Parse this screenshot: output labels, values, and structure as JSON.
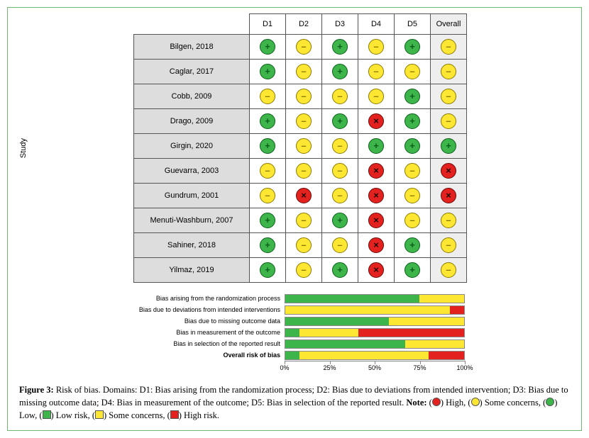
{
  "colors": {
    "low": {
      "fill": "#3db54a",
      "border": "#0b5f1b",
      "glyph": "+",
      "glyph_color": "#0b5f1b"
    },
    "some": {
      "fill": "#fde733",
      "border": "#8a7a00",
      "glyph": "–",
      "glyph_color": "#8a7a00"
    },
    "high": {
      "fill": "#e3211f",
      "border": "#6a0c0b",
      "glyph": "×",
      "glyph_color": "#1a0404"
    },
    "bar_low": "#3db54a",
    "bar_some": "#fde733",
    "bar_high": "#e3211f",
    "panel_border": "#6eb96e"
  },
  "table": {
    "axis_label": "Study",
    "columns": [
      "D1",
      "D2",
      "D3",
      "D4",
      "D5",
      "Overall"
    ],
    "rows": [
      {
        "study": "Bilgen, 2018",
        "ratings": [
          "low",
          "some",
          "low",
          "some",
          "low",
          "some"
        ]
      },
      {
        "study": "Caglar, 2017",
        "ratings": [
          "low",
          "some",
          "low",
          "some",
          "some",
          "some"
        ]
      },
      {
        "study": "Cobb, 2009",
        "ratings": [
          "some",
          "some",
          "some",
          "some",
          "low",
          "some"
        ]
      },
      {
        "study": "Drago, 2009",
        "ratings": [
          "low",
          "some",
          "low",
          "high",
          "low",
          "some"
        ]
      },
      {
        "study": "Girgin, 2020",
        "ratings": [
          "low",
          "some",
          "some",
          "low",
          "low",
          "low"
        ]
      },
      {
        "study": "Guevarra, 2003",
        "ratings": [
          "some",
          "some",
          "some",
          "high",
          "some",
          "high"
        ]
      },
      {
        "study": "Gundrum, 2001",
        "ratings": [
          "some",
          "high",
          "some",
          "high",
          "some",
          "high"
        ]
      },
      {
        "study": "Menuti-Washburn, 2007",
        "ratings": [
          "low",
          "some",
          "low",
          "high",
          "some",
          "some"
        ]
      },
      {
        "study": "Sahiner, 2018",
        "ratings": [
          "low",
          "some",
          "some",
          "high",
          "low",
          "some"
        ]
      },
      {
        "study": "Yilmaz, 2019",
        "ratings": [
          "low",
          "some",
          "low",
          "high",
          "low",
          "some"
        ]
      }
    ]
  },
  "barchart": {
    "x_ticks": [
      0,
      25,
      50,
      75,
      100
    ],
    "x_tick_labels": [
      "0%",
      "25%",
      "50%",
      "75%",
      "100%"
    ],
    "bars": [
      {
        "label": "Bias arising from the randomization process",
        "low": 75,
        "some": 25,
        "high": 0,
        "bold": false
      },
      {
        "label": "Bias due to deviations from intended interventions",
        "low": 0,
        "some": 92,
        "high": 8,
        "bold": false
      },
      {
        "label": "Bias due to missing outcome data",
        "low": 58,
        "some": 42,
        "high": 0,
        "bold": false
      },
      {
        "label": "Bias in measurement of the outcome",
        "low": 8,
        "some": 33,
        "high": 59,
        "bold": false
      },
      {
        "label": "Bias in selection of the reported result",
        "low": 67,
        "some": 33,
        "high": 0,
        "bold": false
      },
      {
        "label": "Overall risk of bias",
        "low": 8,
        "some": 72,
        "high": 20,
        "bold": true
      }
    ]
  },
  "caption": {
    "label": "Figure 3:",
    "body": " Risk of bias. Domains: D1: Bias arising from the randomization process; D2: Bias due to deviations from intended intervention; D3: Bias due to missing outcome data; D4: Bias in measurement of the outcome; D5: Bias in selection of the reported result. ",
    "note_label": "Note:",
    "legend": [
      {
        "type": "dot",
        "color": "#e3211f",
        "text": "High"
      },
      {
        "type": "dot",
        "color": "#fde733",
        "text": "Some concerns"
      },
      {
        "type": "dot",
        "color": "#3db54a",
        "text": "Low"
      },
      {
        "type": "sq",
        "color": "#3db54a",
        "text": "Low risk"
      },
      {
        "type": "sq",
        "color": "#fde733",
        "text": "Some concerns"
      },
      {
        "type": "sq",
        "color": "#e3211f",
        "text": "High risk"
      }
    ]
  }
}
